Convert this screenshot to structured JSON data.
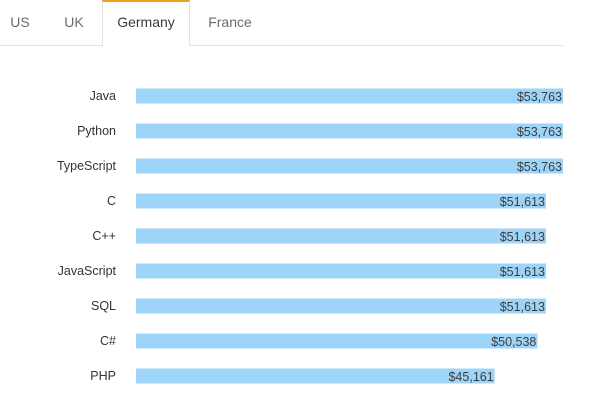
{
  "tabs": [
    {
      "label": "US",
      "active": false
    },
    {
      "label": "UK",
      "active": false
    },
    {
      "label": "Germany",
      "active": true
    },
    {
      "label": "France",
      "active": false
    }
  ],
  "colors": {
    "bar": "#9dd4f7",
    "active_tab_accent": "#f0a020"
  },
  "chart_data": {
    "type": "bar",
    "orientation": "horizontal",
    "categories": [
      "Java",
      "Python",
      "TypeScript",
      "C",
      "C++",
      "JavaScript",
      "SQL",
      "C#",
      "PHP"
    ],
    "values": [
      53763,
      53763,
      53763,
      51613,
      51613,
      51613,
      51613,
      50538,
      45161
    ],
    "value_labels": [
      "$53,763",
      "$53,763",
      "$53,763",
      "$51,613",
      "$51,613",
      "$51,613",
      "$51,613",
      "$50,538",
      "$45,161"
    ],
    "title": "",
    "xlabel": "",
    "ylabel": "",
    "xlim": [
      0,
      53763
    ],
    "grid": false,
    "legend": "none"
  }
}
